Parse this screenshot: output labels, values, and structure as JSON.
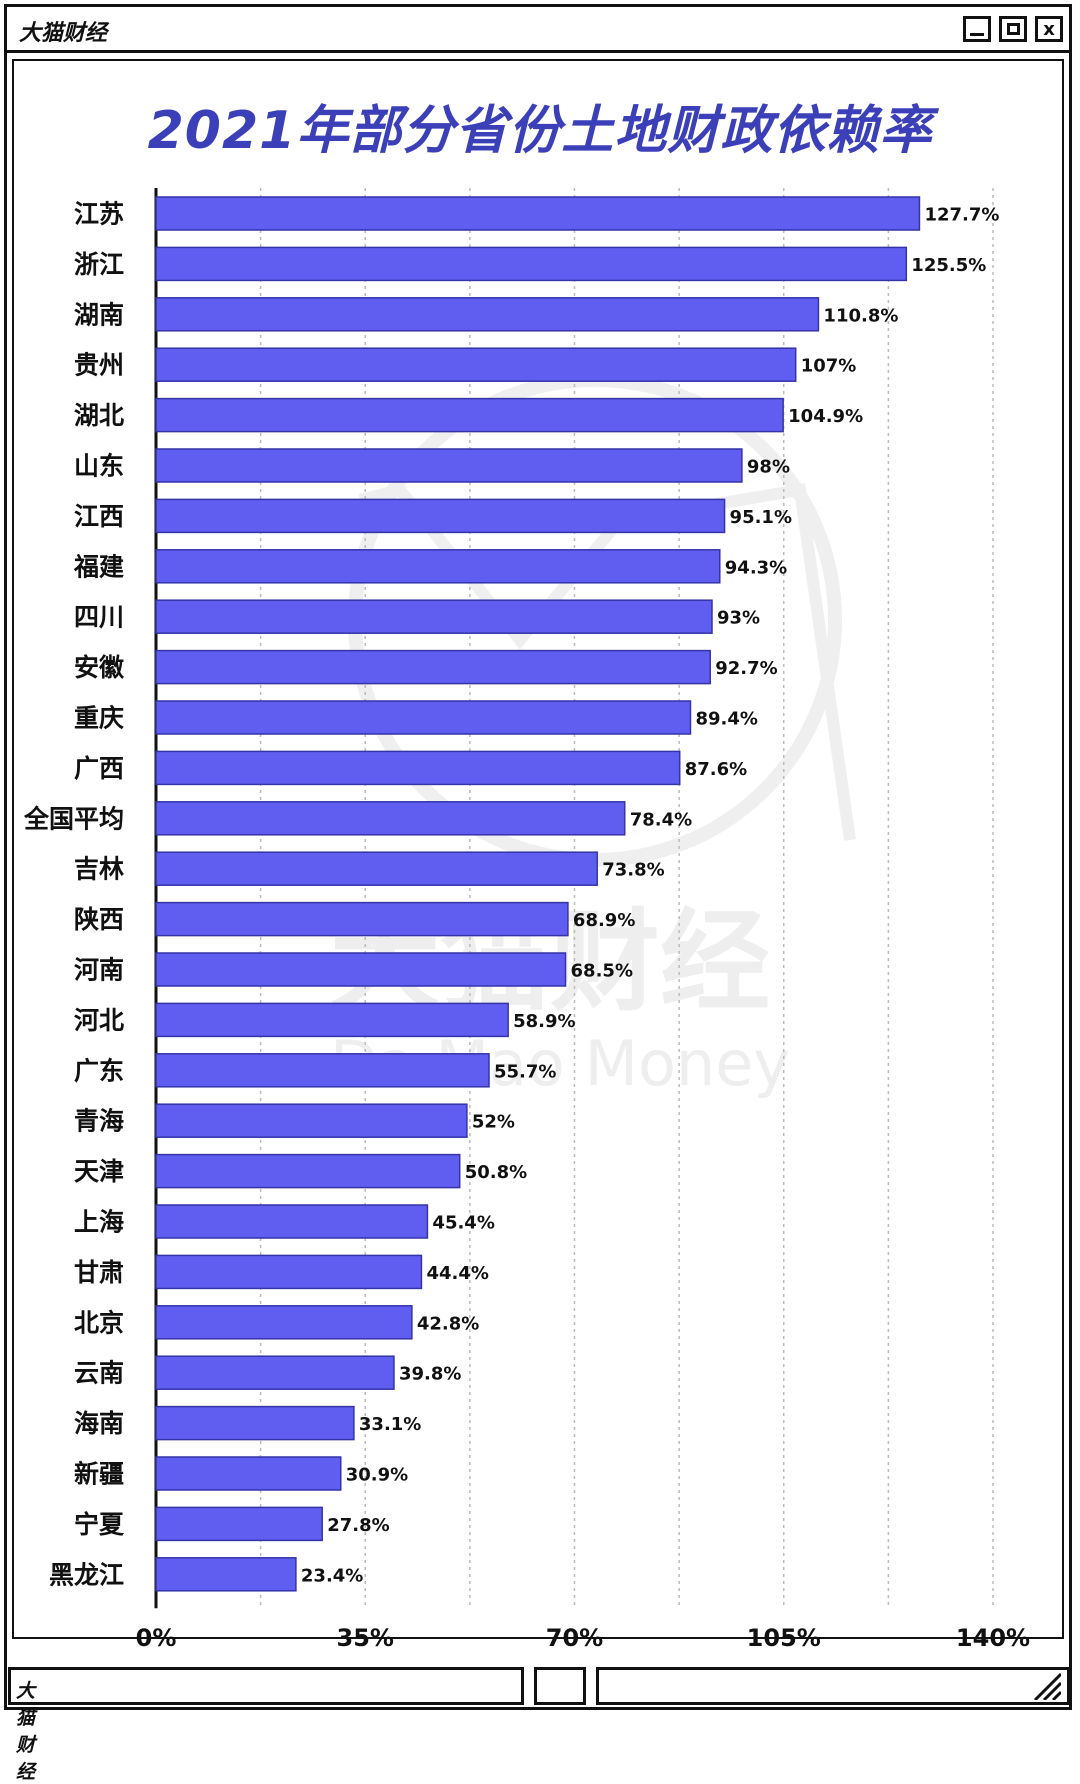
{
  "window": {
    "brand": "大猫财经",
    "footer_brand": "大猫财经",
    "minimize_icon": "minimize-icon",
    "maximize_icon": "maximize-icon",
    "close_label": "x"
  },
  "watermark": {
    "text": "大猫财经",
    "subtext": "Da Mao Money"
  },
  "colors": {
    "bar": "#5f5ef0",
    "bar_stroke": "#3434a8",
    "title": "#3b3fb8",
    "grid": "#bbbbbb"
  },
  "chart_data": {
    "type": "bar",
    "orientation": "horizontal",
    "title": "2021年部分省份土地财政依赖率",
    "xlabel": "",
    "ylabel": "",
    "xlim": [
      0,
      140
    ],
    "ticks": [
      "0%",
      "35%",
      "70%",
      "105%",
      "140%"
    ],
    "tick_values": [
      0,
      35,
      70,
      105,
      140
    ],
    "grid": true,
    "categories": [
      "江苏",
      "浙江",
      "湖南",
      "贵州",
      "湖北",
      "山东",
      "江西",
      "福建",
      "四川",
      "安徽",
      "重庆",
      "广西",
      "全国平均",
      "吉林",
      "陕西",
      "河南",
      "河北",
      "广东",
      "青海",
      "天津",
      "上海",
      "甘肃",
      "北京",
      "云南",
      "海南",
      "新疆",
      "宁夏",
      "黑龙江"
    ],
    "values": [
      127.7,
      125.5,
      110.8,
      107,
      104.9,
      98,
      95.1,
      94.3,
      93,
      92.7,
      89.4,
      87.6,
      78.4,
      73.8,
      68.9,
      68.5,
      58.9,
      55.7,
      52,
      50.8,
      45.4,
      44.4,
      42.8,
      39.8,
      33.1,
      30.9,
      27.8,
      23.4
    ],
    "value_labels": [
      "127.7%",
      "125.5%",
      "110.8%",
      "107%",
      "104.9%",
      "98%",
      "95.1%",
      "94.3%",
      "93%",
      "92.7%",
      "89.4%",
      "87.6%",
      "78.4%",
      "73.8%",
      "68.9%",
      "68.5%",
      "58.9%",
      "55.7%",
      "52%",
      "50.8%",
      "45.4%",
      "44.4%",
      "42.8%",
      "39.8%",
      "33.1%",
      "30.9%",
      "27.8%",
      "23.4%"
    ]
  }
}
